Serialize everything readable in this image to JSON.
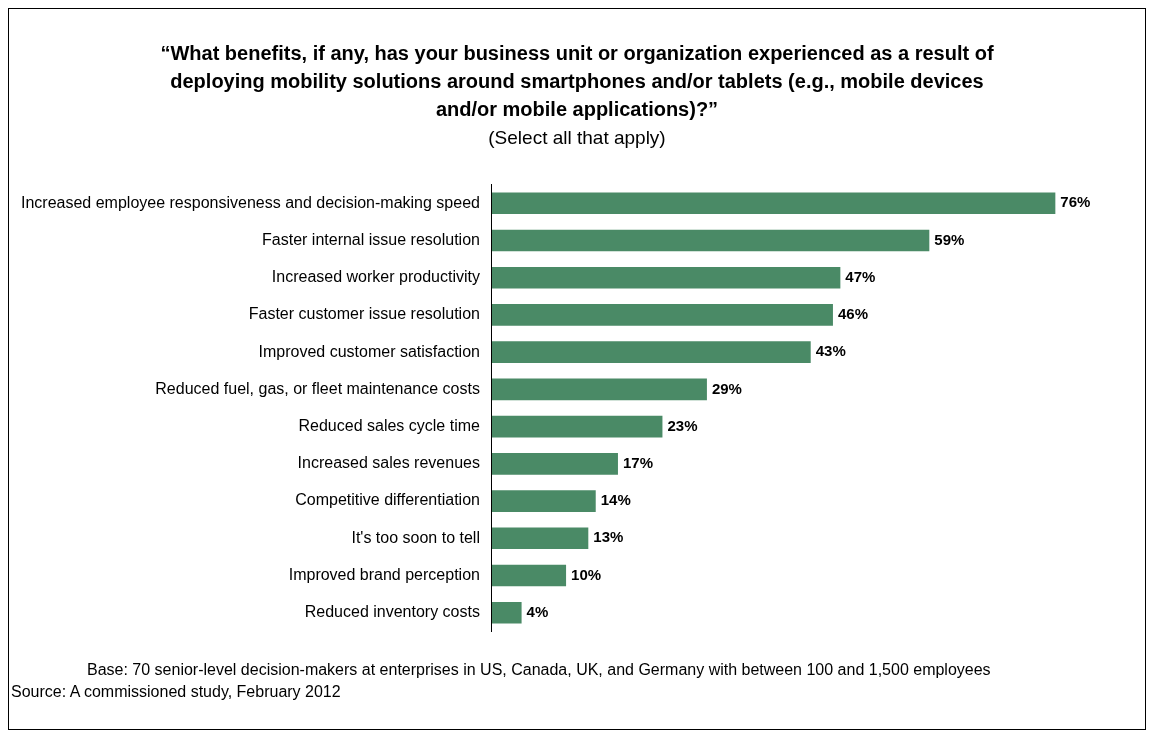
{
  "chart_data": {
    "type": "bar",
    "orientation": "horizontal",
    "title": "“What benefits, if any, has your business unit or organization experienced as a result of deploying mobility solutions around smartphones and/or tablets (e.g., mobile devices and/or mobile applications)?”",
    "subtitle": "(Select all that apply)",
    "categories": [
      "Increased employee responsiveness and decision-making speed",
      "Faster internal issue resolution",
      "Increased worker productivity",
      "Faster customer issue resolution",
      "Improved customer satisfaction",
      "Reduced fuel, gas, or fleet maintenance costs",
      "Reduced sales cycle time",
      "Increased sales revenues",
      "Competitive differentiation",
      "It's too soon to tell",
      "Improved brand perception",
      "Reduced inventory costs"
    ],
    "values": [
      76,
      59,
      47,
      46,
      43,
      29,
      23,
      17,
      14,
      13,
      10,
      4
    ],
    "value_labels": [
      "76%",
      "59%",
      "47%",
      "46%",
      "43%",
      "29%",
      "23%",
      "17%",
      "14%",
      "13%",
      "10%",
      "4%"
    ],
    "color": "#4a8a66",
    "grid": false,
    "legend": false,
    "annotations": [
      "Base: 70 senior-level decision-makers at enterprises in US, Canada, UK, and Germany with between 100 and 1,500 employees",
      "Source: A commissioned study, February 2012"
    ]
  }
}
